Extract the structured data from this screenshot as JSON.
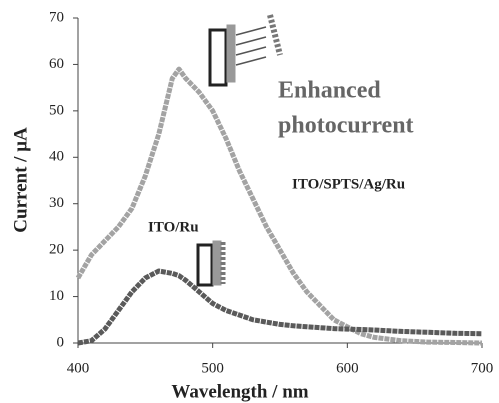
{
  "chart_data": {
    "type": "line",
    "x_label": "Wavelength / nm",
    "y_label": "Current / μA",
    "annotation": [
      "Enhanced",
      "photocurrent"
    ],
    "x": [
      400,
      410,
      420,
      430,
      440,
      450,
      460,
      470,
      475,
      480,
      490,
      500,
      510,
      520,
      530,
      540,
      550,
      560,
      570,
      580,
      590,
      600,
      610,
      620,
      640,
      660,
      680,
      700
    ],
    "series": [
      {
        "name": "ITO/SPTS/Ag/Ru",
        "color": "#a3a3a3",
        "values": [
          14,
          19,
          22,
          25,
          29,
          36,
          45,
          57,
          59,
          57,
          54,
          50,
          44,
          37,
          31,
          25,
          20,
          15,
          11,
          8,
          5,
          3.5,
          2,
          1.2,
          0.5,
          0.2,
          0.1,
          0
        ]
      },
      {
        "name": "ITO/Ru",
        "color": "#5a5a5a",
        "values": [
          0,
          0.5,
          3,
          7,
          11,
          14,
          15.5,
          15,
          14.5,
          13.5,
          11,
          8.5,
          7,
          6,
          5,
          4.5,
          4,
          3.7,
          3.5,
          3.3,
          3.1,
          3,
          2.9,
          2.8,
          2.5,
          2.3,
          2.1,
          2
        ]
      }
    ],
    "xlim": [
      400,
      700
    ],
    "xticks": [
      400,
      500,
      600,
      700
    ],
    "ylim": [
      0,
      70
    ],
    "yticks": [
      0,
      10,
      20,
      30,
      40,
      50,
      60,
      70
    ],
    "grid": false
  }
}
